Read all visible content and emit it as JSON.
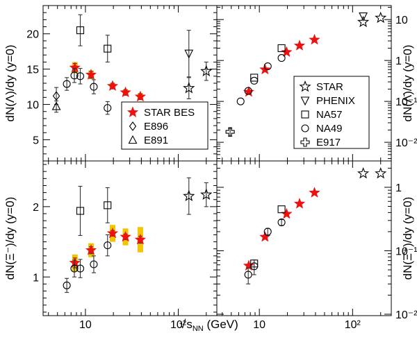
{
  "figure": {
    "xlabel": "√s_NN (GeV)",
    "xlabel_main": "s",
    "xlabel_sub": "NN",
    "xlabel_unit": " (GeV)"
  },
  "chart_data": [
    {
      "type": "scatter",
      "panel": "top-left",
      "ylabel": "dN(Λ)/dy (y=0)",
      "xscale": "log",
      "xlim": [
        3.5,
        260
      ],
      "yscale": "linear",
      "ylim": [
        2,
        24
      ],
      "yticks": [
        "5",
        "10",
        "15",
        "20"
      ],
      "legend": {
        "placement": "bottom-right",
        "entries": [
          "STAR BES",
          "E896",
          "E891"
        ]
      },
      "series": [
        {
          "name": "STAR BES",
          "marker": "star-filled",
          "color": "#ee1111",
          "points": [
            {
              "x": 7.7,
              "y": 15.2,
              "err": 0.6,
              "sys": 0.8
            },
            {
              "x": 11.5,
              "y": 14.2,
              "err": 0.5,
              "sys": 0.6
            },
            {
              "x": 19.6,
              "y": 12.6,
              "err": 0.4,
              "sys": 0.4
            },
            {
              "x": 27,
              "y": 11.7,
              "err": 0.4,
              "sys": 0.4
            },
            {
              "x": 39,
              "y": 11.1,
              "err": 0.4,
              "sys": 0.5
            }
          ]
        },
        {
          "name": "E896",
          "marker": "diamond-open",
          "points": [
            {
              "x": 4.86,
              "y": 11.2,
              "err": 1.2
            }
          ]
        },
        {
          "name": "E891",
          "marker": "triangle-open",
          "points": [
            {
              "x": 4.86,
              "y": 9.7,
              "err": 0.8
            }
          ]
        },
        {
          "name": "STAR",
          "marker": "star-open",
          "points": [
            {
              "x": 130,
              "y": 12.3,
              "err": 1.5
            },
            {
              "x": 200,
              "y": 14.7,
              "err": 1.3
            }
          ]
        },
        {
          "name": "PHENIX",
          "marker": "triangle-down-open",
          "points": [
            {
              "x": 130,
              "y": 17.2,
              "err": 3.3
            }
          ]
        },
        {
          "name": "NA57",
          "marker": "square-open",
          "points": [
            {
              "x": 8.8,
              "y": 20.5,
              "err": 2.2
            },
            {
              "x": 17.3,
              "y": 17.9,
              "err": 1.9
            }
          ]
        },
        {
          "name": "NA49",
          "marker": "circle-open",
          "points": [
            {
              "x": 6.3,
              "y": 12.9,
              "err": 0.9
            },
            {
              "x": 7.6,
              "y": 14.1,
              "err": 1.0
            },
            {
              "x": 8.8,
              "y": 14.0,
              "err": 1.1
            },
            {
              "x": 12.3,
              "y": 12.5,
              "err": 1.0
            },
            {
              "x": 17.3,
              "y": 9.5,
              "err": 0.9
            }
          ]
        }
      ]
    },
    {
      "type": "scatter",
      "panel": "top-right",
      "ylabel": "dN(Λ̄)/dy (y=0)",
      "xscale": "log",
      "xlim": [
        3.5,
        260
      ],
      "yscale": "log",
      "ylim": [
        0.0035,
        22
      ],
      "yticks": [
        "10⁻²",
        "10⁻¹",
        "1",
        "10"
      ],
      "legend": {
        "placement": "bottom-right",
        "entries": [
          "STAR",
          "PHENIX",
          "NA57",
          "NA49",
          "E917"
        ]
      },
      "series": [
        {
          "name": "STAR BES",
          "marker": "star-filled",
          "color": "#ee1111",
          "points": [
            {
              "x": 7.7,
              "y": 0.17
            },
            {
              "x": 11.5,
              "y": 0.6
            },
            {
              "x": 19.6,
              "y": 1.6
            },
            {
              "x": 27,
              "y": 2.3
            },
            {
              "x": 39,
              "y": 3.2
            }
          ]
        },
        {
          "name": "STAR",
          "marker": "star-open",
          "points": [
            {
              "x": 130,
              "y": 8.7
            },
            {
              "x": 200,
              "y": 11.0
            }
          ]
        },
        {
          "name": "PHENIX",
          "marker": "triangle-down-open",
          "points": [
            {
              "x": 130,
              "y": 12.0
            }
          ]
        },
        {
          "name": "NA57",
          "marker": "square-open",
          "points": [
            {
              "x": 8.8,
              "y": 0.38
            },
            {
              "x": 17.3,
              "y": 2.0
            }
          ]
        },
        {
          "name": "NA49",
          "marker": "circle-open",
          "points": [
            {
              "x": 6.3,
              "y": 0.1
            },
            {
              "x": 7.6,
              "y": 0.18
            },
            {
              "x": 8.8,
              "y": 0.32
            },
            {
              "x": 12.3,
              "y": 0.72
            },
            {
              "x": 17.3,
              "y": 1.15
            }
          ]
        },
        {
          "name": "E917",
          "marker": "cross-open",
          "points": [
            {
              "x": 4.86,
              "y": 0.018,
              "err": 0.004
            }
          ]
        }
      ]
    },
    {
      "type": "scatter",
      "panel": "bottom-left",
      "ylabel": "dN(Ξ⁻)/dy (y=0)",
      "xscale": "log",
      "xlim": [
        3.5,
        260
      ],
      "yscale": "linear",
      "ylim": [
        0.45,
        2.65
      ],
      "yticks": [
        "1",
        "2"
      ],
      "series": [
        {
          "name": "STAR BES",
          "marker": "star-filled",
          "color": "#ee1111",
          "points": [
            {
              "x": 7.7,
              "y": 1.2,
              "err": 0.07,
              "sys": 0.12
            },
            {
              "x": 11.5,
              "y": 1.38,
              "err": 0.05,
              "sys": 0.1
            },
            {
              "x": 19.6,
              "y": 1.62,
              "err": 0.04,
              "sys": 0.12
            },
            {
              "x": 27,
              "y": 1.57,
              "err": 0.04,
              "sys": 0.12
            },
            {
              "x": 39,
              "y": 1.53,
              "err": 0.05,
              "sys": 0.18
            }
          ]
        },
        {
          "name": "STAR",
          "marker": "star-open",
          "points": [
            {
              "x": 130,
              "y": 2.15,
              "err": 0.26
            },
            {
              "x": 200,
              "y": 2.17,
              "err": 0.17
            }
          ]
        },
        {
          "name": "NA57",
          "marker": "square-open",
          "points": [
            {
              "x": 8.8,
              "y": 1.94,
              "err": 0.35
            },
            {
              "x": 17.3,
              "y": 2.02,
              "err": 0.25
            }
          ]
        },
        {
          "name": "NA49",
          "marker": "circle-open",
          "points": [
            {
              "x": 6.3,
              "y": 0.88,
              "err": 0.1
            },
            {
              "x": 7.6,
              "y": 1.12,
              "err": 0.12
            },
            {
              "x": 8.8,
              "y": 1.12,
              "err": 0.13
            },
            {
              "x": 12.3,
              "y": 1.18,
              "err": 0.12
            },
            {
              "x": 17.3,
              "y": 1.45,
              "err": 0.15
            }
          ]
        }
      ]
    },
    {
      "type": "scatter",
      "panel": "bottom-right",
      "ylabel": "dN(Ξ̄⁺)/dy (y=0)",
      "xscale": "log",
      "xlim": [
        3.5,
        260
      ],
      "yscale": "log",
      "ylim": [
        0.0095,
        2.6
      ],
      "yticks": [
        "10⁻²",
        "10⁻¹",
        "1"
      ],
      "series": [
        {
          "name": "STAR BES",
          "marker": "star-filled",
          "color": "#ee1111",
          "points": [
            {
              "x": 7.7,
              "y": 0.058
            },
            {
              "x": 11.5,
              "y": 0.165
            },
            {
              "x": 19.6,
              "y": 0.38
            },
            {
              "x": 27,
              "y": 0.55
            },
            {
              "x": 39,
              "y": 0.82
            }
          ]
        },
        {
          "name": "STAR",
          "marker": "star-open",
          "points": [
            {
              "x": 130,
              "y": 1.65
            },
            {
              "x": 200,
              "y": 1.65
            }
          ]
        },
        {
          "name": "NA57",
          "marker": "square-open",
          "points": [
            {
              "x": 8.8,
              "y": 0.063
            },
            {
              "x": 17.3,
              "y": 0.45
            }
          ]
        },
        {
          "name": "NA49",
          "marker": "circle-open",
          "points": [
            {
              "x": 7.6,
              "y": 0.042,
              "err": 0.012
            },
            {
              "x": 8.8,
              "y": 0.057,
              "err": 0.015
            },
            {
              "x": 12.3,
              "y": 0.2,
              "err": 0.025
            },
            {
              "x": 17.3,
              "y": 0.28,
              "err": 0.03
            }
          ]
        }
      ]
    }
  ],
  "xticks": [
    "10",
    "10²"
  ],
  "colors": {
    "star_bes": "#ee1111",
    "sys_band": "#f2c500",
    "axis": "#000000"
  }
}
